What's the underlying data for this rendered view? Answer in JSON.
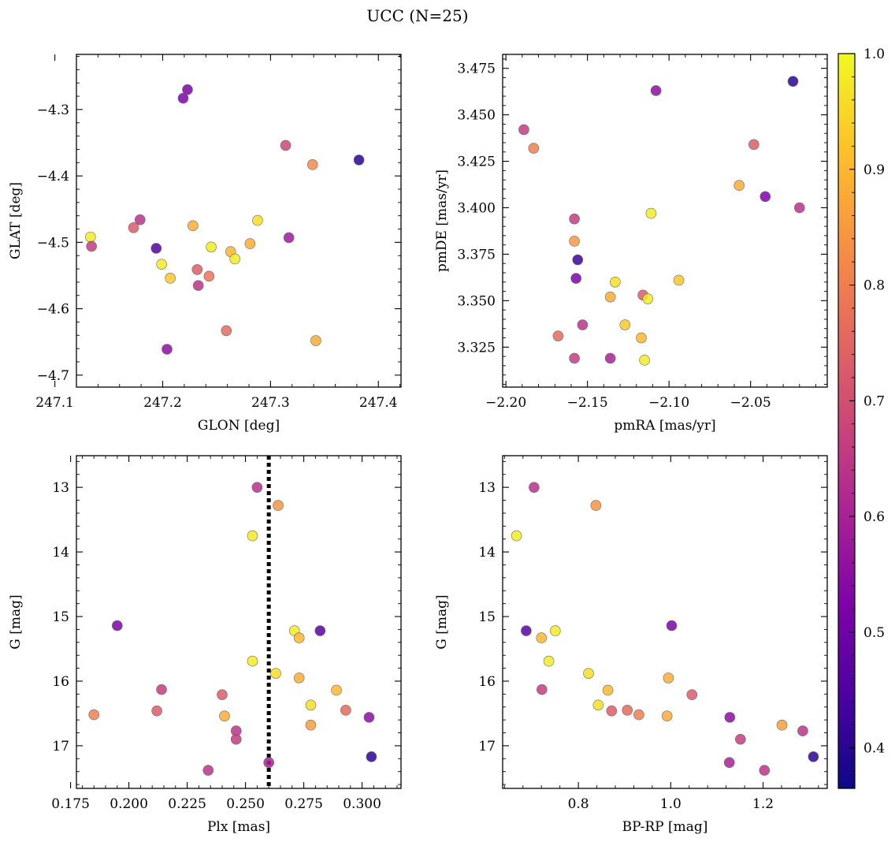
{
  "figure": {
    "title": "UCC (N=25)"
  },
  "colorbar": {
    "colormap": "plasma",
    "range": [
      0.365,
      1.0
    ],
    "ticks": [
      "1.0",
      "0.9",
      "0.8",
      "0.7",
      "0.6",
      "0.5",
      "0.4"
    ]
  },
  "chart_data": [
    {
      "type": "scatter",
      "xlabel": "GLON [deg]",
      "ylabel": "GLAT [deg]",
      "xlim": [
        247.12,
        247.421
      ],
      "ylim": [
        -4.718,
        -4.217
      ],
      "xticks": [
        "247.1",
        "247.2",
        "247.3",
        "247.4"
      ],
      "yticks": [
        "-4.3",
        "-4.4",
        "-4.5",
        "-4.6",
        "-4.7"
      ],
      "points": [
        {
          "x": 247.223,
          "y": -4.27,
          "c": 0.52
        },
        {
          "x": 247.219,
          "y": -4.283,
          "c": 0.52
        },
        {
          "x": 247.314,
          "y": -4.354,
          "c": 0.68
        },
        {
          "x": 247.339,
          "y": -4.383,
          "c": 0.82
        },
        {
          "x": 247.382,
          "y": -4.376,
          "c": 0.4
        },
        {
          "x": 247.133,
          "y": -4.492,
          "c": 0.98
        },
        {
          "x": 247.134,
          "y": -4.506,
          "c": 0.66
        },
        {
          "x": 247.173,
          "y": -4.478,
          "c": 0.73
        },
        {
          "x": 247.179,
          "y": -4.466,
          "c": 0.64
        },
        {
          "x": 247.194,
          "y": -4.509,
          "c": 0.45
        },
        {
          "x": 247.228,
          "y": -4.475,
          "c": 0.88
        },
        {
          "x": 247.199,
          "y": -4.533,
          "c": 0.98
        },
        {
          "x": 247.207,
          "y": -4.554,
          "c": 0.93
        },
        {
          "x": 247.232,
          "y": -4.541,
          "c": 0.73
        },
        {
          "x": 247.243,
          "y": -4.551,
          "c": 0.78
        },
        {
          "x": 247.233,
          "y": -4.565,
          "c": 0.64
        },
        {
          "x": 247.245,
          "y": -4.507,
          "c": 0.98
        },
        {
          "x": 247.263,
          "y": -4.514,
          "c": 0.9
        },
        {
          "x": 247.267,
          "y": -4.525,
          "c": 0.98
        },
        {
          "x": 247.281,
          "y": -4.502,
          "c": 0.88
        },
        {
          "x": 247.288,
          "y": -4.467,
          "c": 0.96
        },
        {
          "x": 247.317,
          "y": -4.493,
          "c": 0.58
        },
        {
          "x": 247.259,
          "y": -4.633,
          "c": 0.76
        },
        {
          "x": 247.204,
          "y": -4.661,
          "c": 0.55
        },
        {
          "x": 247.342,
          "y": -4.648,
          "c": 0.88
        }
      ]
    },
    {
      "type": "scatter",
      "xlabel": "pmRA [mas/yr]",
      "ylabel": "pmDE [mas/yr]",
      "xlim": [
        -2.202,
        -2.003
      ],
      "ylim": [
        3.3035,
        3.4825
      ],
      "xticks": [
        "-2.20",
        "-2.15",
        "-2.10",
        "-2.05"
      ],
      "yticks": [
        "3.325",
        "3.350",
        "3.375",
        "3.400",
        "3.425",
        "3.450",
        "3.475"
      ],
      "points": [
        {
          "x": -2.024,
          "y": 3.468,
          "c": 0.4
        },
        {
          "x": -2.108,
          "y": 3.463,
          "c": 0.55
        },
        {
          "x": -2.189,
          "y": 3.442,
          "c": 0.66
        },
        {
          "x": -2.183,
          "y": 3.432,
          "c": 0.8
        },
        {
          "x": -2.048,
          "y": 3.434,
          "c": 0.73
        },
        {
          "x": -2.057,
          "y": 3.412,
          "c": 0.88
        },
        {
          "x": -2.041,
          "y": 3.406,
          "c": 0.52
        },
        {
          "x": -2.02,
          "y": 3.4,
          "c": 0.64
        },
        {
          "x": -2.111,
          "y": 3.397,
          "c": 0.98
        },
        {
          "x": -2.158,
          "y": 3.394,
          "c": 0.66
        },
        {
          "x": -2.158,
          "y": 3.382,
          "c": 0.85
        },
        {
          "x": -2.156,
          "y": 3.372,
          "c": 0.42
        },
        {
          "x": -2.157,
          "y": 3.362,
          "c": 0.52
        },
        {
          "x": -2.133,
          "y": 3.36,
          "c": 0.96
        },
        {
          "x": -2.094,
          "y": 3.361,
          "c": 0.92
        },
        {
          "x": -2.136,
          "y": 3.352,
          "c": 0.88
        },
        {
          "x": -2.116,
          "y": 3.353,
          "c": 0.73
        },
        {
          "x": -2.113,
          "y": 3.351,
          "c": 0.98
        },
        {
          "x": -2.153,
          "y": 3.337,
          "c": 0.64
        },
        {
          "x": -2.127,
          "y": 3.337,
          "c": 0.93
        },
        {
          "x": -2.168,
          "y": 3.331,
          "c": 0.76
        },
        {
          "x": -2.117,
          "y": 3.33,
          "c": 0.9
        },
        {
          "x": -2.158,
          "y": 3.319,
          "c": 0.66
        },
        {
          "x": -2.136,
          "y": 3.319,
          "c": 0.6
        },
        {
          "x": -2.115,
          "y": 3.318,
          "c": 0.98
        }
      ]
    },
    {
      "type": "scatter",
      "xlabel": "Plx [mas]",
      "ylabel": "G [mag]",
      "xlim": [
        0.1775,
        0.3167
      ],
      "ylim": [
        17.66,
        12.51
      ],
      "xticks": [
        "0.175",
        "0.200",
        "0.225",
        "0.250",
        "0.275",
        "0.300"
      ],
      "yticks": [
        "13",
        "14",
        "15",
        "16",
        "17"
      ],
      "vline": {
        "x": 0.26
      },
      "points": [
        {
          "x": 0.255,
          "y": 13.0,
          "c": 0.63
        },
        {
          "x": 0.264,
          "y": 13.28,
          "c": 0.84
        },
        {
          "x": 0.253,
          "y": 13.75,
          "c": 0.98
        },
        {
          "x": 0.195,
          "y": 15.14,
          "c": 0.52
        },
        {
          "x": 0.271,
          "y": 15.22,
          "c": 0.98
        },
        {
          "x": 0.282,
          "y": 15.22,
          "c": 0.47
        },
        {
          "x": 0.273,
          "y": 15.33,
          "c": 0.9
        },
        {
          "x": 0.253,
          "y": 15.69,
          "c": 0.98
        },
        {
          "x": 0.263,
          "y": 15.88,
          "c": 0.96
        },
        {
          "x": 0.273,
          "y": 15.95,
          "c": 0.88
        },
        {
          "x": 0.214,
          "y": 16.13,
          "c": 0.66
        },
        {
          "x": 0.289,
          "y": 16.14,
          "c": 0.9
        },
        {
          "x": 0.24,
          "y": 16.21,
          "c": 0.73
        },
        {
          "x": 0.278,
          "y": 16.37,
          "c": 0.96
        },
        {
          "x": 0.293,
          "y": 16.45,
          "c": 0.76
        },
        {
          "x": 0.212,
          "y": 16.46,
          "c": 0.73
        },
        {
          "x": 0.185,
          "y": 16.52,
          "c": 0.8
        },
        {
          "x": 0.241,
          "y": 16.54,
          "c": 0.88
        },
        {
          "x": 0.303,
          "y": 16.56,
          "c": 0.55
        },
        {
          "x": 0.278,
          "y": 16.68,
          "c": 0.86
        },
        {
          "x": 0.246,
          "y": 16.77,
          "c": 0.64
        },
        {
          "x": 0.246,
          "y": 16.9,
          "c": 0.66
        },
        {
          "x": 0.304,
          "y": 17.17,
          "c": 0.4
        },
        {
          "x": 0.26,
          "y": 17.26,
          "c": 0.6
        },
        {
          "x": 0.234,
          "y": 17.38,
          "c": 0.64
        }
      ]
    },
    {
      "type": "scatter",
      "xlabel": "BP-RP [mag]",
      "ylabel": "G [mag]",
      "xlim": [
        0.636,
        1.339
      ],
      "ylim": [
        17.66,
        12.51
      ],
      "xticks": [
        "0.8",
        "1.0",
        "1.2"
      ],
      "yticks": [
        "13",
        "14",
        "15",
        "16",
        "17"
      ],
      "points": [
        {
          "x": 0.704,
          "y": 13.0,
          "c": 0.63
        },
        {
          "x": 0.838,
          "y": 13.28,
          "c": 0.84
        },
        {
          "x": 0.666,
          "y": 13.75,
          "c": 0.98
        },
        {
          "x": 1.002,
          "y": 15.14,
          "c": 0.52
        },
        {
          "x": 0.687,
          "y": 15.22,
          "c": 0.47
        },
        {
          "x": 0.75,
          "y": 15.22,
          "c": 0.98
        },
        {
          "x": 0.72,
          "y": 15.33,
          "c": 0.9
        },
        {
          "x": 0.736,
          "y": 15.69,
          "c": 0.98
        },
        {
          "x": 0.822,
          "y": 15.88,
          "c": 0.96
        },
        {
          "x": 0.995,
          "y": 15.95,
          "c": 0.88
        },
        {
          "x": 0.721,
          "y": 16.13,
          "c": 0.66
        },
        {
          "x": 0.864,
          "y": 16.14,
          "c": 0.9
        },
        {
          "x": 1.046,
          "y": 16.21,
          "c": 0.73
        },
        {
          "x": 0.843,
          "y": 16.37,
          "c": 0.96
        },
        {
          "x": 0.906,
          "y": 16.45,
          "c": 0.76
        },
        {
          "x": 0.872,
          "y": 16.46,
          "c": 0.73
        },
        {
          "x": 0.931,
          "y": 16.52,
          "c": 0.8
        },
        {
          "x": 0.992,
          "y": 16.54,
          "c": 0.88
        },
        {
          "x": 1.128,
          "y": 16.56,
          "c": 0.55
        },
        {
          "x": 1.241,
          "y": 16.68,
          "c": 0.86
        },
        {
          "x": 1.286,
          "y": 16.77,
          "c": 0.64
        },
        {
          "x": 1.151,
          "y": 16.9,
          "c": 0.66
        },
        {
          "x": 1.309,
          "y": 17.17,
          "c": 0.4
        },
        {
          "x": 1.127,
          "y": 17.26,
          "c": 0.6
        },
        {
          "x": 1.203,
          "y": 17.38,
          "c": 0.64
        }
      ]
    }
  ]
}
